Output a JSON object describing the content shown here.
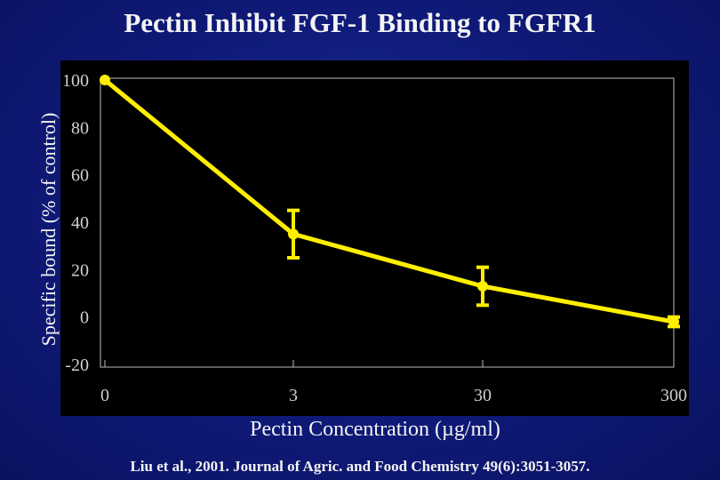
{
  "slide": {
    "title": "Pectin Inhibit FGF-1 Binding to FGFR1",
    "citation": "Liu et al., 2001. Journal of Agric. and Food Chemistry 49(6):3051-3057."
  },
  "colors": {
    "background": "#0f1a78",
    "plot_background": "#000000",
    "series": "#ffee00",
    "axis_text": "#cfcfcf",
    "grid": "#bbbbbb"
  },
  "chart_data": {
    "type": "line",
    "title": "Pectin Inhibit FGF-1 Binding to FGFR1",
    "xlabel": "Pectin Concentration (µg/ml)",
    "ylabel": "Specific bound (% of control)",
    "categories": [
      "0",
      "3",
      "30",
      "300"
    ],
    "yticks": [
      "100",
      "80",
      "60",
      "40",
      "20",
      "0",
      "-20"
    ],
    "ylim": [
      -20,
      100
    ],
    "series": [
      {
        "values": [
          100,
          35,
          13,
          -2
        ],
        "error": [
          0,
          10,
          8,
          2
        ]
      }
    ],
    "grid": false,
    "legend": false
  }
}
